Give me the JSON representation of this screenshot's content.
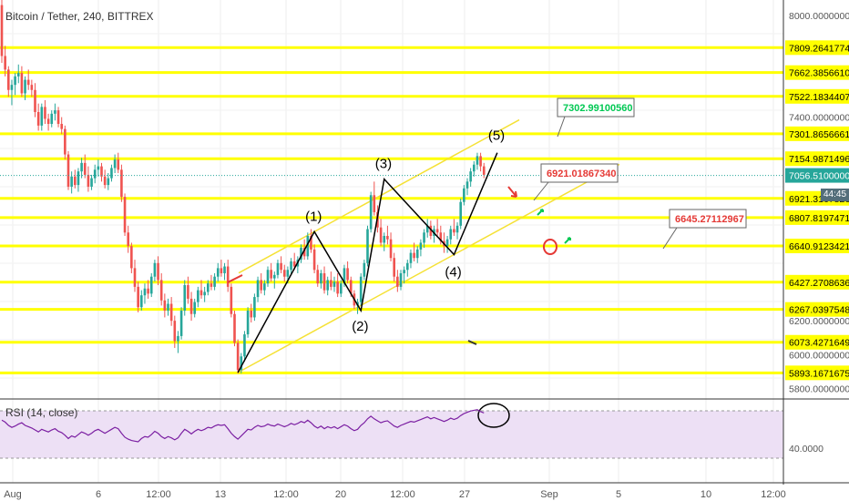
{
  "header": {
    "title": "Bitcoin / Tether, 240, BITTREX"
  },
  "rsi": {
    "title": "RSI (14, close)",
    "level_label": "40.0000"
  },
  "countdown": "44:45",
  "colors": {
    "bull": "#26a69a",
    "bear": "#ef5350",
    "hline": "#ffff00",
    "channel": "#f5e135",
    "wave": "#000000",
    "rsi_line": "#7b1fa2",
    "rsi_band": "#ede0f5",
    "price_line": "#26a69a",
    "price_badge": "#26a69a"
  },
  "chart_data": {
    "type": "candlestick",
    "title": "Bitcoin / Tether, 240, BITTREX",
    "ylim": [
      5750,
      8090
    ],
    "x_tick_labels": [
      "Aug",
      "6",
      "12:00",
      "13",
      "12:00",
      "20",
      "12:00",
      "27",
      "Sep",
      "5",
      "10",
      "12:00"
    ],
    "y_tick_labels": [
      "8000.00000000",
      "7400.00000000",
      "6200.00000000",
      "6000.00000000",
      "5800.00000000"
    ],
    "current_price": {
      "value": 7056.51,
      "label": "7056.51000000"
    },
    "horizontal_levels": [
      {
        "value": 7809.26,
        "label": "7809.26417745"
      },
      {
        "value": 7662.39,
        "label": "7662.38566101"
      },
      {
        "value": 7522.18,
        "label": "7522.18344077"
      },
      {
        "value": 7301.87,
        "label": "7301.86566611"
      },
      {
        "value": 7154.99,
        "label": "7154.98714967"
      },
      {
        "value": 6921.32,
        "label": "6921.31678261"
      },
      {
        "value": 6807.82,
        "label": "6807.81974718"
      },
      {
        "value": 6640.91,
        "label": "6640.91234213"
      },
      {
        "value": 6427.27,
        "label": "6427.27086367"
      },
      {
        "value": 6267.04,
        "label": "6267.03975483"
      },
      {
        "value": 6073.43,
        "label": "6073.42716498"
      },
      {
        "value": 5893.17,
        "label": "5893.16716753"
      }
    ],
    "wave_points": [
      {
        "label": "",
        "bar": 71,
        "price": 5895
      },
      {
        "label": "(1)",
        "bar": 94,
        "price": 6725
      },
      {
        "label": "(2)",
        "bar": 108,
        "price": 6260
      },
      {
        "label": "(3)",
        "bar": 115,
        "price": 7035
      },
      {
        "label": "(4)",
        "bar": 136,
        "price": 6590
      },
      {
        "label": "(5)",
        "bar": 149,
        "price": 7190
      }
    ],
    "callouts": [
      {
        "label": "7302.99100560",
        "color": "#00c853"
      },
      {
        "label": "6921.01867340",
        "color": "#e53935"
      },
      {
        "label": "6645.27112967",
        "color": "#e53935"
      }
    ],
    "candles": [
      [
        8060,
        8090,
        7720,
        7760
      ],
      [
        7760,
        7820,
        7640,
        7680
      ],
      [
        7680,
        7700,
        7520,
        7560
      ],
      [
        7560,
        7620,
        7470,
        7590
      ],
      [
        7590,
        7660,
        7530,
        7640
      ],
      [
        7640,
        7710,
        7600,
        7660
      ],
      [
        7660,
        7700,
        7520,
        7540
      ],
      [
        7540,
        7640,
        7500,
        7620
      ],
      [
        7620,
        7680,
        7560,
        7590
      ],
      [
        7590,
        7620,
        7520,
        7560
      ],
      [
        7560,
        7600,
        7400,
        7430
      ],
      [
        7430,
        7480,
        7320,
        7350
      ],
      [
        7350,
        7480,
        7320,
        7460
      ],
      [
        7460,
        7500,
        7360,
        7390
      ],
      [
        7390,
        7420,
        7320,
        7360
      ],
      [
        7360,
        7440,
        7340,
        7420
      ],
      [
        7420,
        7480,
        7380,
        7440
      ],
      [
        7440,
        7460,
        7340,
        7360
      ],
      [
        7360,
        7400,
        7300,
        7330
      ],
      [
        7330,
        7350,
        7150,
        7180
      ],
      [
        7180,
        7200,
        6970,
        6990
      ],
      [
        6990,
        7080,
        6950,
        7050
      ],
      [
        7050,
        7090,
        6980,
        7000
      ],
      [
        7000,
        7100,
        6960,
        7080
      ],
      [
        7080,
        7160,
        7040,
        7130
      ],
      [
        7130,
        7180,
        7040,
        7060
      ],
      [
        7060,
        7110,
        6960,
        6990
      ],
      [
        6990,
        7060,
        6970,
        7040
      ],
      [
        7040,
        7120,
        7010,
        7090
      ],
      [
        7090,
        7150,
        7050,
        7110
      ],
      [
        7110,
        7130,
        7020,
        7050
      ],
      [
        7050,
        7090,
        6980,
        7000
      ],
      [
        7000,
        7070,
        6970,
        7040
      ],
      [
        7040,
        7120,
        7020,
        7100
      ],
      [
        7100,
        7180,
        7070,
        7150
      ],
      [
        7150,
        7190,
        7070,
        7090
      ],
      [
        7090,
        7120,
        6900,
        6930
      ],
      [
        6930,
        6950,
        6700,
        6720
      ],
      [
        6720,
        6760,
        6600,
        6640
      ],
      [
        6640,
        6660,
        6480,
        6510
      ],
      [
        6510,
        6560,
        6370,
        6400
      ],
      [
        6400,
        6430,
        6250,
        6280
      ],
      [
        6280,
        6380,
        6260,
        6350
      ],
      [
        6350,
        6420,
        6300,
        6390
      ],
      [
        6390,
        6440,
        6330,
        6360
      ],
      [
        6360,
        6480,
        6340,
        6460
      ],
      [
        6460,
        6560,
        6430,
        6540
      ],
      [
        6540,
        6580,
        6410,
        6440
      ],
      [
        6440,
        6480,
        6290,
        6320
      ],
      [
        6320,
        6360,
        6220,
        6260
      ],
      [
        6260,
        6330,
        6230,
        6300
      ],
      [
        6300,
        6340,
        6170,
        6200
      ],
      [
        6200,
        6230,
        6040,
        6080
      ],
      [
        6080,
        6140,
        6010,
        6110
      ],
      [
        6110,
        6280,
        6090,
        6260
      ],
      [
        6260,
        6440,
        6230,
        6410
      ],
      [
        6410,
        6460,
        6300,
        6330
      ],
      [
        6330,
        6370,
        6200,
        6240
      ],
      [
        6240,
        6330,
        6220,
        6310
      ],
      [
        6310,
        6400,
        6280,
        6380
      ],
      [
        6380,
        6440,
        6330,
        6350
      ],
      [
        6350,
        6400,
        6310,
        6370
      ],
      [
        6370,
        6440,
        6350,
        6420
      ],
      [
        6420,
        6470,
        6380,
        6400
      ],
      [
        6400,
        6480,
        6380,
        6460
      ],
      [
        6460,
        6540,
        6430,
        6510
      ],
      [
        6510,
        6560,
        6460,
        6480
      ],
      [
        6480,
        6540,
        6440,
        6520
      ],
      [
        6520,
        6560,
        6370,
        6400
      ],
      [
        6400,
        6420,
        6220,
        6240
      ],
      [
        6240,
        6260,
        6050,
        6070
      ],
      [
        6070,
        6090,
        5890,
        5910
      ],
      [
        5910,
        6010,
        5890,
        5990
      ],
      [
        5990,
        6140,
        5960,
        6120
      ],
      [
        6120,
        6280,
        6100,
        6260
      ],
      [
        6260,
        6300,
        6190,
        6220
      ],
      [
        6220,
        6360,
        6200,
        6340
      ],
      [
        6340,
        6460,
        6310,
        6440
      ],
      [
        6440,
        6480,
        6360,
        6380
      ],
      [
        6380,
        6440,
        6350,
        6420
      ],
      [
        6420,
        6520,
        6400,
        6500
      ],
      [
        6500,
        6540,
        6430,
        6450
      ],
      [
        6450,
        6490,
        6390,
        6470
      ],
      [
        6470,
        6560,
        6450,
        6540
      ],
      [
        6540,
        6580,
        6480,
        6500
      ],
      [
        6500,
        6530,
        6430,
        6460
      ],
      [
        6460,
        6520,
        6420,
        6500
      ],
      [
        6500,
        6570,
        6470,
        6550
      ],
      [
        6550,
        6600,
        6500,
        6520
      ],
      [
        6520,
        6580,
        6480,
        6560
      ],
      [
        6560,
        6650,
        6540,
        6630
      ],
      [
        6630,
        6680,
        6560,
        6580
      ],
      [
        6580,
        6720,
        6560,
        6700
      ],
      [
        6700,
        6740,
        6600,
        6620
      ],
      [
        6620,
        6650,
        6480,
        6500
      ],
      [
        6500,
        6530,
        6400,
        6420
      ],
      [
        6420,
        6500,
        6390,
        6480
      ],
      [
        6480,
        6520,
        6360,
        6380
      ],
      [
        6380,
        6460,
        6350,
        6440
      ],
      [
        6440,
        6490,
        6380,
        6400
      ],
      [
        6400,
        6460,
        6370,
        6430
      ],
      [
        6430,
        6480,
        6340,
        6360
      ],
      [
        6360,
        6440,
        6340,
        6420
      ],
      [
        6420,
        6530,
        6400,
        6510
      ],
      [
        6510,
        6550,
        6420,
        6440
      ],
      [
        6440,
        6460,
        6340,
        6360
      ],
      [
        6360,
        6380,
        6270,
        6290
      ],
      [
        6290,
        6330,
        6240,
        6310
      ],
      [
        6310,
        6480,
        6290,
        6460
      ],
      [
        6460,
        6560,
        6440,
        6540
      ],
      [
        6540,
        6760,
        6520,
        6740
      ],
      [
        6740,
        6960,
        6720,
        6940
      ],
      [
        6940,
        7020,
        6820,
        6840
      ],
      [
        6840,
        6880,
        6720,
        6750
      ],
      [
        6750,
        6800,
        6640,
        6660
      ],
      [
        6660,
        6720,
        6610,
        6700
      ],
      [
        6700,
        6760,
        6650,
        6680
      ],
      [
        6680,
        6720,
        6550,
        6570
      ],
      [
        6570,
        6600,
        6430,
        6460
      ],
      [
        6460,
        6500,
        6370,
        6400
      ],
      [
        6400,
        6500,
        6380,
        6480
      ],
      [
        6480,
        6520,
        6420,
        6500
      ],
      [
        6500,
        6560,
        6460,
        6540
      ],
      [
        6540,
        6620,
        6510,
        6600
      ],
      [
        6600,
        6660,
        6550,
        6570
      ],
      [
        6570,
        6640,
        6540,
        6620
      ],
      [
        6620,
        6680,
        6580,
        6660
      ],
      [
        6660,
        6740,
        6630,
        6720
      ],
      [
        6720,
        6800,
        6690,
        6760
      ],
      [
        6760,
        6790,
        6680,
        6700
      ],
      [
        6700,
        6760,
        6660,
        6740
      ],
      [
        6740,
        6800,
        6700,
        6720
      ],
      [
        6720,
        6760,
        6650,
        6670
      ],
      [
        6670,
        6720,
        6600,
        6640
      ],
      [
        6640,
        6700,
        6600,
        6680
      ],
      [
        6680,
        6760,
        6650,
        6740
      ],
      [
        6740,
        6800,
        6700,
        6720
      ],
      [
        6720,
        6780,
        6680,
        6760
      ],
      [
        6760,
        6920,
        6740,
        6900
      ],
      [
        6900,
        7000,
        6880,
        6980
      ],
      [
        6980,
        7040,
        6940,
        7020
      ],
      [
        7020,
        7100,
        6990,
        7080
      ],
      [
        7080,
        7140,
        7050,
        7120
      ],
      [
        7120,
        7190,
        7090,
        7170
      ],
      [
        7170,
        7190,
        7080,
        7110
      ],
      [
        7110,
        7130,
        7040,
        7060
      ]
    ],
    "rsi_values": [
      58,
      55,
      50,
      47,
      49,
      52,
      54,
      50,
      48,
      46,
      43,
      40,
      44,
      42,
      40,
      43,
      45,
      41,
      39,
      35,
      30,
      34,
      32,
      36,
      40,
      38,
      35,
      38,
      42,
      44,
      41,
      38,
      41,
      44,
      47,
      45,
      38,
      32,
      29,
      27,
      26,
      25,
      30,
      33,
      32,
      36,
      41,
      38,
      33,
      30,
      33,
      31,
      28,
      31,
      38,
      44,
      41,
      37,
      41,
      44,
      42,
      44,
      47,
      46,
      49,
      51,
      50,
      51,
      45,
      38,
      33,
      29,
      34,
      39,
      44,
      43,
      47,
      50,
      48,
      49,
      52,
      50,
      49,
      52,
      50,
      48,
      50,
      53,
      51,
      53,
      56,
      54,
      58,
      54,
      49,
      46,
      49,
      45,
      48,
      46,
      48,
      45,
      48,
      51,
      49,
      45,
      42,
      44,
      50,
      54,
      60,
      64,
      60,
      57,
      54,
      56,
      57,
      53,
      49,
      47,
      50,
      52,
      54,
      56,
      55,
      57,
      59,
      61,
      63,
      60,
      62,
      60,
      58,
      56,
      58,
      61,
      59,
      61,
      65,
      68,
      70,
      72,
      73,
      74,
      71,
      69
    ]
  }
}
